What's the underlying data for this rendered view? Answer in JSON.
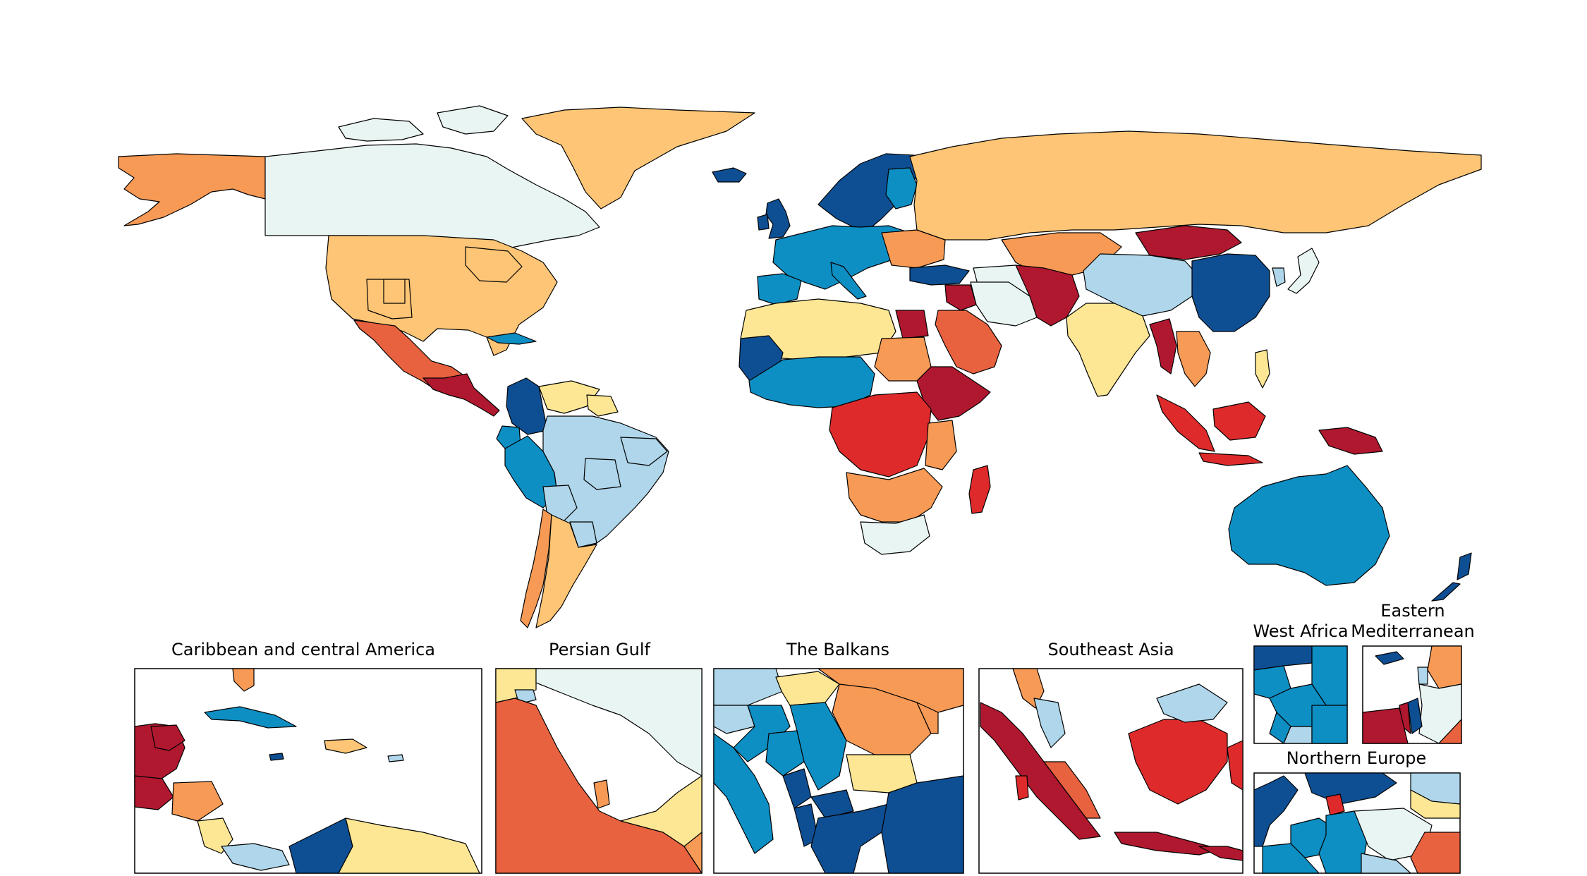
{
  "palette": {
    "c1": "#0e4f94",
    "c2": "#0d8fc4",
    "c3": "#afd6ea",
    "c4": "#e9f5f3",
    "c5": "#fde794",
    "c6": "#fdc575",
    "c7": "#f79a55",
    "c8": "#e9623f",
    "c9": "#de2a2b",
    "c10": "#b0182f",
    "sea": "#ffffff",
    "border": "#000000"
  },
  "map": {
    "projection": "equirectangular",
    "regions": [
      {
        "name": "Alaska",
        "cls": "c7"
      },
      {
        "name": "Canada",
        "cls": "c4"
      },
      {
        "name": "Greenland",
        "cls": "c6"
      },
      {
        "name": "United States",
        "cls": "c6"
      },
      {
        "name": "Mexico",
        "cls": "c8"
      },
      {
        "name": "Central America",
        "cls": "c10"
      },
      {
        "name": "Colombia",
        "cls": "c1"
      },
      {
        "name": "Venezuela",
        "cls": "c5"
      },
      {
        "name": "Brazil",
        "cls": "c3"
      },
      {
        "name": "Peru",
        "cls": "c2"
      },
      {
        "name": "Argentina",
        "cls": "c6"
      },
      {
        "name": "Chile",
        "cls": "c7"
      },
      {
        "name": "Scandinavia",
        "cls": "c1"
      },
      {
        "name": "United Kingdom",
        "cls": "c1"
      },
      {
        "name": "Western Europe",
        "cls": "c2"
      },
      {
        "name": "Russia",
        "cls": "c6"
      },
      {
        "name": "Kazakhstan",
        "cls": "c7"
      },
      {
        "name": "Mongolia",
        "cls": "c10"
      },
      {
        "name": "China",
        "cls": "c3"
      },
      {
        "name": "Eastern China",
        "cls": "c1"
      },
      {
        "name": "India",
        "cls": "c5"
      },
      {
        "name": "Pakistan / Afghanistan",
        "cls": "c10"
      },
      {
        "name": "Iran",
        "cls": "c4"
      },
      {
        "name": "Saudi Arabia",
        "cls": "c8"
      },
      {
        "name": "North Africa",
        "cls": "c5"
      },
      {
        "name": "Egypt",
        "cls": "c10"
      },
      {
        "name": "West Africa",
        "cls": "c2"
      },
      {
        "name": "Mauritania",
        "cls": "c1"
      },
      {
        "name": "Sudan",
        "cls": "c7"
      },
      {
        "name": "Horn of Africa",
        "cls": "c10"
      },
      {
        "name": "Central Africa",
        "cls": "c9"
      },
      {
        "name": "Southern Africa",
        "cls": "c7"
      },
      {
        "name": "South Africa",
        "cls": "c4"
      },
      {
        "name": "Madagascar",
        "cls": "c9"
      },
      {
        "name": "Southeast Asia",
        "cls": "c9"
      },
      {
        "name": "Australia",
        "cls": "c2"
      },
      {
        "name": "New Zealand",
        "cls": "c1"
      },
      {
        "name": "Japan",
        "cls": "c4"
      }
    ]
  },
  "insets": [
    {
      "id": "caribbean",
      "title": [
        "Caribbean and central America"
      ]
    },
    {
      "id": "persian-gulf",
      "title": [
        "Persian Gulf"
      ]
    },
    {
      "id": "balkans",
      "title": [
        "The Balkans"
      ]
    },
    {
      "id": "southeast-asia",
      "title": [
        "Southeast Asia"
      ]
    },
    {
      "id": "west-africa",
      "title": [
        "West Africa"
      ]
    },
    {
      "id": "eastern-mediterranean",
      "title": [
        "Eastern",
        "Mediterranean"
      ]
    },
    {
      "id": "northern-europe",
      "title": [
        "Northern Europe"
      ]
    }
  ]
}
